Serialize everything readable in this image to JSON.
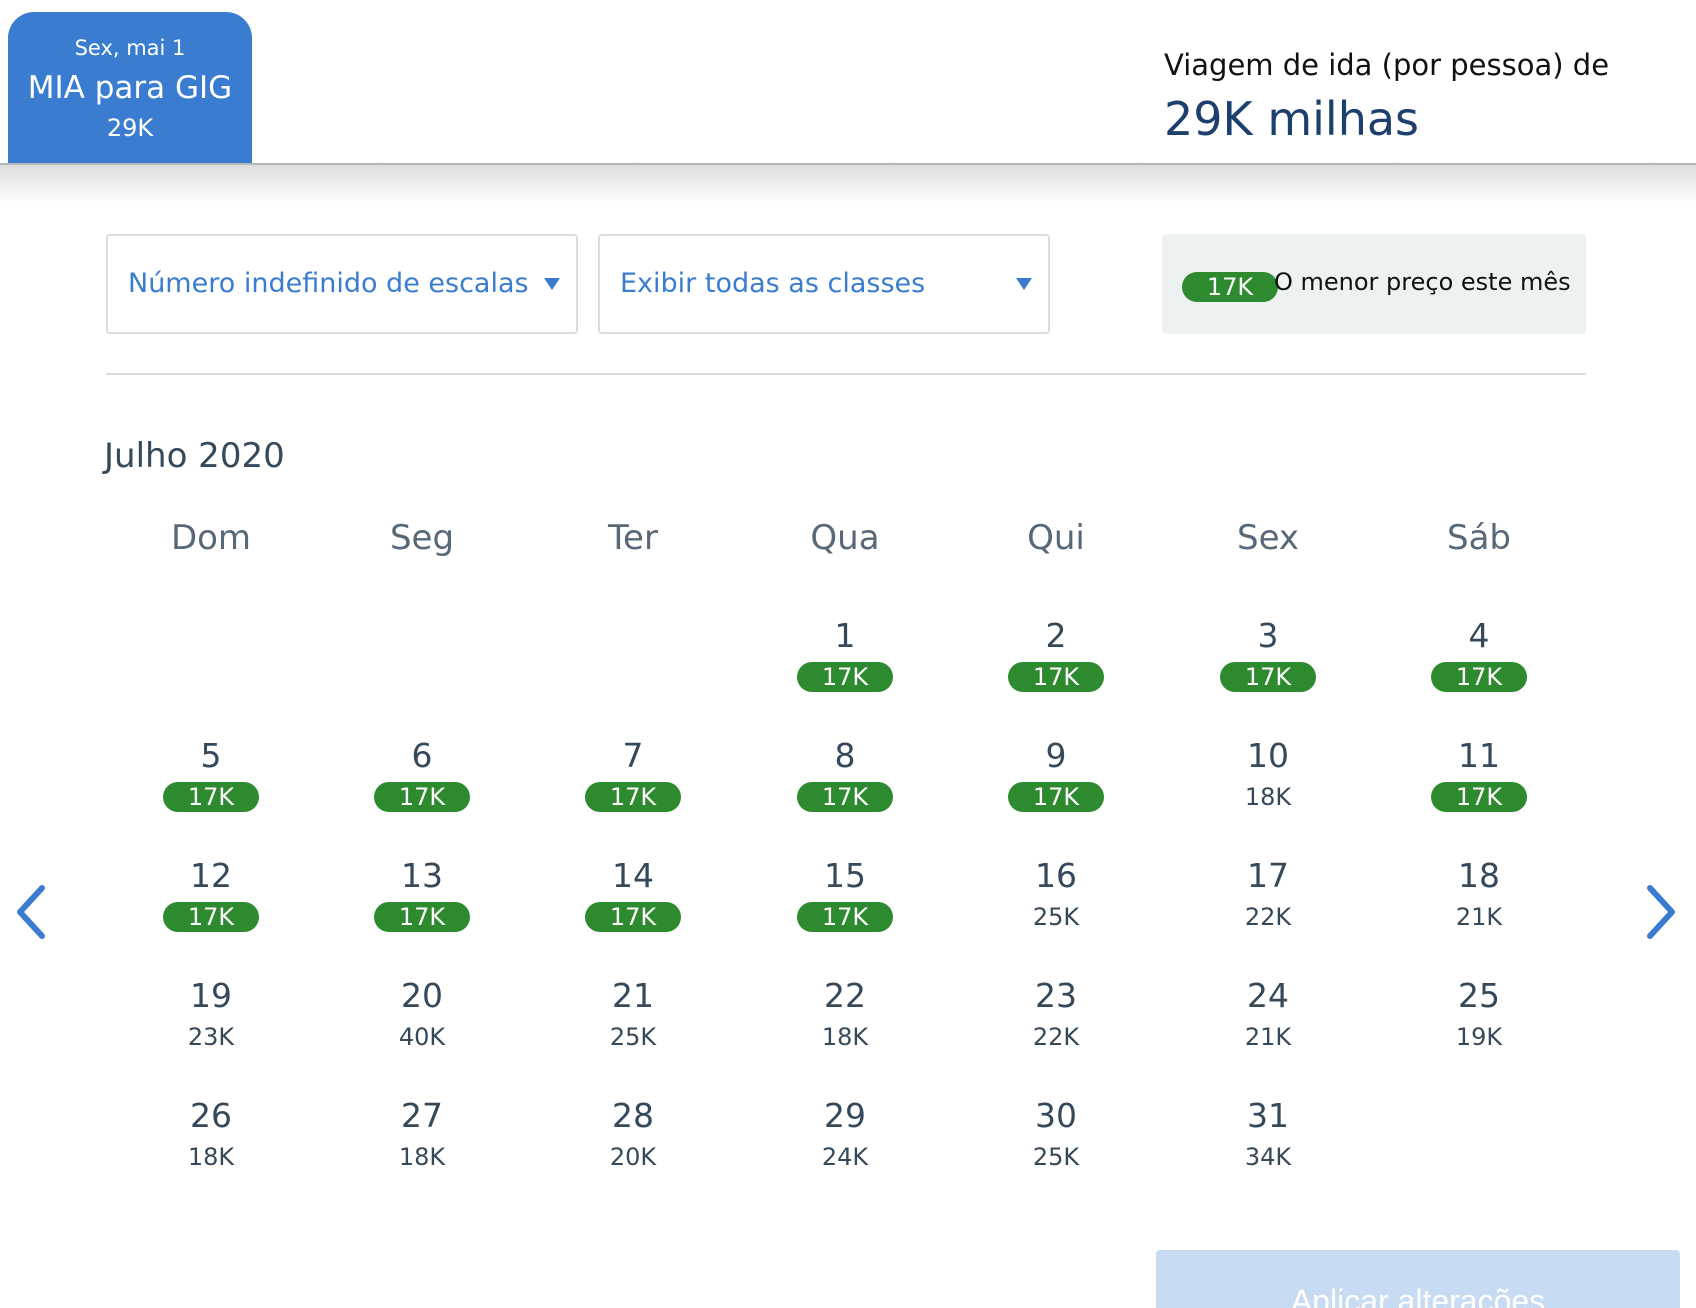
{
  "flight_tab": {
    "date": "Sex, mai 1",
    "route": "MIA para GIG",
    "price": "29K"
  },
  "trip_summary": {
    "label": "Viagem de ida (por pessoa) de",
    "value": "29K milhas"
  },
  "filters": {
    "stops": {
      "label": "Número indefinido de escalas"
    },
    "classes": {
      "label": "Exibir todas as classes"
    }
  },
  "legend": {
    "chip": "17K",
    "text": "O menor preço este mês"
  },
  "calendar": {
    "month_title": "Julho 2020",
    "weekdays": [
      "Dom",
      "Seg",
      "Ter",
      "Qua",
      "Qui",
      "Sex",
      "Sáb"
    ],
    "first_weekday_index": 3,
    "days": [
      {
        "day": "1",
        "price": "17K",
        "lowest": true
      },
      {
        "day": "2",
        "price": "17K",
        "lowest": true
      },
      {
        "day": "3",
        "price": "17K",
        "lowest": true
      },
      {
        "day": "4",
        "price": "17K",
        "lowest": true
      },
      {
        "day": "5",
        "price": "17K",
        "lowest": true
      },
      {
        "day": "6",
        "price": "17K",
        "lowest": true
      },
      {
        "day": "7",
        "price": "17K",
        "lowest": true
      },
      {
        "day": "8",
        "price": "17K",
        "lowest": true
      },
      {
        "day": "9",
        "price": "17K",
        "lowest": true
      },
      {
        "day": "10",
        "price": "18K",
        "lowest": false
      },
      {
        "day": "11",
        "price": "17K",
        "lowest": true
      },
      {
        "day": "12",
        "price": "17K",
        "lowest": true
      },
      {
        "day": "13",
        "price": "17K",
        "lowest": true
      },
      {
        "day": "14",
        "price": "17K",
        "lowest": true
      },
      {
        "day": "15",
        "price": "17K",
        "lowest": true
      },
      {
        "day": "16",
        "price": "25K",
        "lowest": false
      },
      {
        "day": "17",
        "price": "22K",
        "lowest": false
      },
      {
        "day": "18",
        "price": "21K",
        "lowest": false
      },
      {
        "day": "19",
        "price": "23K",
        "lowest": false
      },
      {
        "day": "20",
        "price": "40K",
        "lowest": false
      },
      {
        "day": "21",
        "price": "25K",
        "lowest": false
      },
      {
        "day": "22",
        "price": "18K",
        "lowest": false
      },
      {
        "day": "23",
        "price": "22K",
        "lowest": false
      },
      {
        "day": "24",
        "price": "21K",
        "lowest": false
      },
      {
        "day": "25",
        "price": "19K",
        "lowest": false
      },
      {
        "day": "26",
        "price": "18K",
        "lowest": false
      },
      {
        "day": "27",
        "price": "18K",
        "lowest": false
      },
      {
        "day": "28",
        "price": "20K",
        "lowest": false
      },
      {
        "day": "29",
        "price": "24K",
        "lowest": false
      },
      {
        "day": "30",
        "price": "25K",
        "lowest": false
      },
      {
        "day": "31",
        "price": "34K",
        "lowest": false
      }
    ]
  },
  "navigation": {
    "prev_icon": "chevron-left-icon",
    "next_icon": "chevron-right-icon"
  },
  "apply_button": {
    "label": "Aplicar alterações"
  },
  "colors": {
    "brand_blue": "#3a7dd0",
    "lowest_green": "#2e8a2e",
    "text_dark": "#36495a"
  }
}
